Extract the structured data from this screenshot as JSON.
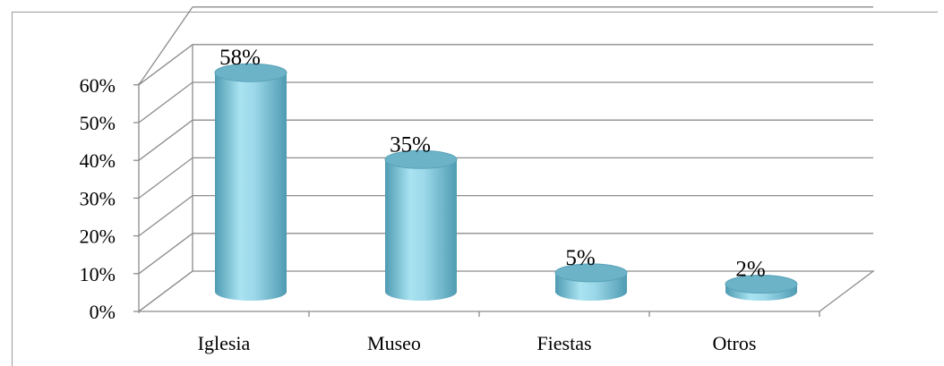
{
  "chart_data": {
    "type": "bar",
    "style": "3d-cylinder",
    "categories": [
      "Iglesia",
      "Museo",
      "Fiestas",
      "Otros"
    ],
    "values": [
      58,
      35,
      5,
      2
    ],
    "data_labels": [
      "58%",
      "35%",
      "5%",
      "2%"
    ],
    "y_ticks": [
      "0%",
      "10%",
      "20%",
      "30%",
      "40%",
      "50%",
      "60%"
    ],
    "ylim": [
      0,
      60
    ],
    "title": "",
    "xlabel": "",
    "ylabel": "",
    "grid": true,
    "legend": "none",
    "colors": {
      "bar_light": "#a9e3f1",
      "bar_mid": "#7fc9dd",
      "bar_dark": "#4f9bb2",
      "top": "#6cb3c8",
      "grid": "#8c8c8c"
    }
  }
}
